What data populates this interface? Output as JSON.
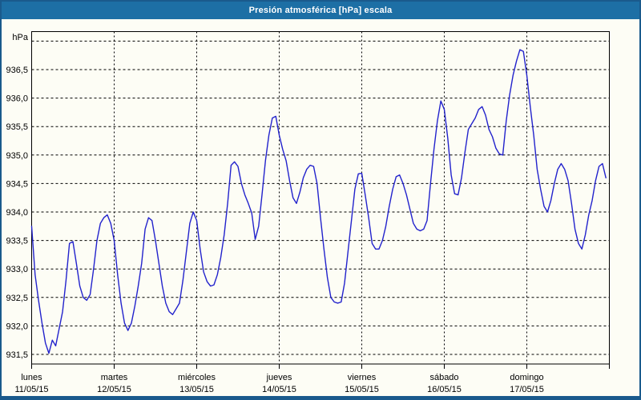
{
  "window": {
    "title": "Presión atmosférica [hPa] escala"
  },
  "colors": {
    "titlebar_bg": "#1d6fa5",
    "title_text": "#ffffff",
    "border": "#1a5a8c",
    "window_bg": "#fdfdf5",
    "plot_frame": "#000000",
    "grid": "#000000",
    "axis_text": "#000000",
    "line": "#2222cc"
  },
  "chart_data": {
    "type": "line",
    "title": "Presión atmosférica [hPa] escala",
    "xlabel": "",
    "ylabel": "hPa",
    "legend": "none",
    "grid": "dashed",
    "y_axis": {
      "unit_label": "hPa",
      "ylim": [
        931.33,
        937.17
      ],
      "gridline_values": [
        937.0,
        936.5,
        936.0,
        935.5,
        935.0,
        934.5,
        934.0,
        933.5,
        933.0,
        932.5,
        932.0,
        931.5
      ],
      "tick_values": [
        936.5,
        936.0,
        935.5,
        935.0,
        934.5,
        934.0,
        933.5,
        933.0,
        932.5,
        932.0,
        931.5
      ],
      "tick_labels": [
        "936,5",
        "936,0",
        "935,5",
        "935,0",
        "934,5",
        "934,0",
        "933,5",
        "933,0",
        "932,5",
        "932,0",
        "931,5"
      ]
    },
    "x_axis": {
      "hours_per_day": 24,
      "days": [
        {
          "name": "lunes",
          "date": "11/05/15"
        },
        {
          "name": "martes",
          "date": "12/05/15"
        },
        {
          "name": "miércoles",
          "date": "13/05/15"
        },
        {
          "name": "jueves",
          "date": "14/05/15"
        },
        {
          "name": "viernes",
          "date": "15/05/15"
        },
        {
          "name": "sábado",
          "date": "16/05/15"
        },
        {
          "name": "domingo",
          "date": "17/05/15"
        }
      ]
    },
    "series": [
      {
        "name": "Presión atmosférica [hPa]",
        "x_unit": "hours since 11/05/15 00:00",
        "values": [
          933.75,
          932.9,
          932.45,
          932.05,
          931.7,
          931.52,
          931.75,
          931.65,
          931.95,
          932.25,
          932.8,
          933.45,
          933.48,
          933.1,
          932.7,
          932.5,
          932.45,
          932.55,
          933.0,
          933.5,
          933.8,
          933.9,
          933.95,
          933.8,
          933.5,
          932.9,
          932.4,
          932.05,
          931.92,
          932.05,
          932.35,
          932.7,
          933.1,
          933.7,
          933.9,
          933.85,
          933.5,
          933.1,
          932.7,
          932.4,
          932.25,
          932.2,
          932.3,
          932.4,
          932.8,
          933.3,
          933.8,
          934.0,
          933.85,
          933.35,
          932.95,
          932.78,
          932.7,
          932.72,
          932.9,
          933.2,
          933.6,
          934.15,
          934.82,
          934.88,
          934.8,
          934.5,
          934.3,
          934.15,
          933.98,
          933.52,
          933.75,
          934.3,
          934.9,
          935.35,
          935.65,
          935.68,
          935.35,
          935.1,
          934.9,
          934.55,
          934.25,
          934.15,
          934.35,
          934.6,
          934.75,
          934.82,
          934.8,
          934.5,
          933.9,
          933.35,
          932.85,
          932.5,
          932.42,
          932.4,
          932.42,
          932.75,
          933.3,
          933.85,
          934.4,
          934.67,
          934.68,
          934.3,
          933.9,
          933.45,
          933.35,
          933.35,
          933.5,
          933.75,
          934.1,
          934.4,
          934.62,
          934.65,
          934.5,
          934.3,
          934.05,
          933.8,
          933.7,
          933.67,
          933.7,
          933.85,
          934.5,
          935.1,
          935.6,
          935.95,
          935.8,
          935.3,
          934.65,
          934.32,
          934.3,
          934.6,
          935.05,
          935.45,
          935.55,
          935.65,
          935.8,
          935.85,
          935.7,
          935.45,
          935.32,
          935.12,
          935.02,
          935.0,
          935.6,
          936.05,
          936.4,
          936.65,
          936.85,
          936.82,
          936.4,
          935.85,
          935.35,
          934.75,
          934.4,
          934.1,
          934.0,
          934.2,
          934.5,
          934.75,
          934.85,
          934.75,
          934.55,
          934.15,
          933.7,
          933.45,
          933.35,
          933.6,
          933.95,
          934.2,
          934.55,
          934.8,
          934.85,
          934.6
        ]
      }
    ]
  }
}
